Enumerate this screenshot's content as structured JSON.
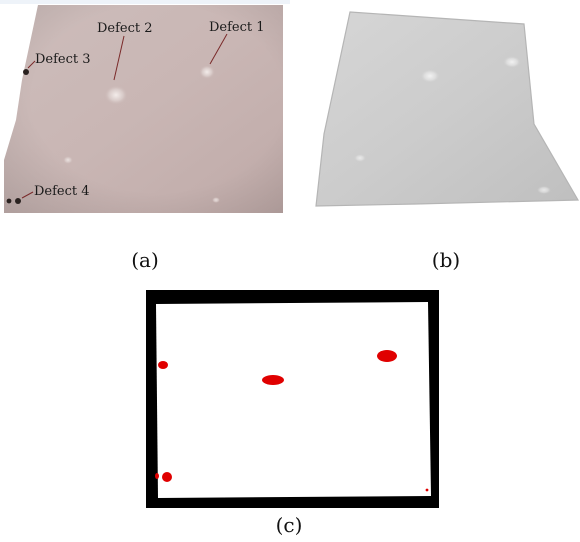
{
  "figure": {
    "panel_a": {
      "caption": "(a)",
      "defect_labels": [
        "Defect 2",
        "Defect 1",
        "Defect 3",
        "Defect 4"
      ]
    },
    "panel_b": {
      "caption": "(b)"
    },
    "panel_c": {
      "caption": "(c)"
    }
  }
}
